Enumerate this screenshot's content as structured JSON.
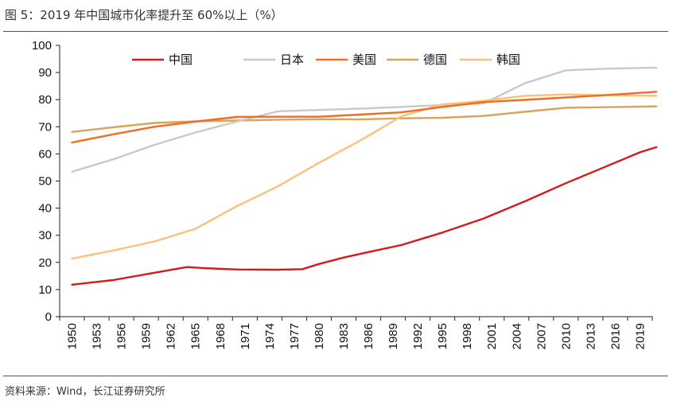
{
  "title": "图 5：2019 年中国城市化率提升至 60%以上（%）",
  "source": "资料来源：Wind，长江证券研究所",
  "chart_data": {
    "type": "line",
    "title": "2019 年中国城市化率提升至 60%以上（%）",
    "xlabel": "",
    "ylabel": "",
    "ylim": [
      0,
      100
    ],
    "yticks": [
      0,
      10,
      20,
      30,
      40,
      50,
      60,
      70,
      80,
      90,
      100
    ],
    "xlim": [
      1950,
      2022
    ],
    "xticks": [
      1950,
      1953,
      1956,
      1959,
      1962,
      1965,
      1968,
      1971,
      1974,
      1977,
      1980,
      1983,
      1986,
      1989,
      1992,
      1995,
      1998,
      2001,
      2004,
      2007,
      2010,
      2013,
      2016,
      2019
    ],
    "legend_position": "top",
    "series": [
      {
        "name": "中国",
        "color": "#d7191c",
        "x": [
          1950,
          1955,
          1960,
          1964,
          1966,
          1970,
          1975,
          1978,
          1980,
          1983,
          1986,
          1990,
          1995,
          2000,
          2005,
          2010,
          2015,
          2019,
          2021
        ],
        "y": [
          11.8,
          13.5,
          16.2,
          18.3,
          17.9,
          17.4,
          17.3,
          17.5,
          19.4,
          21.8,
          23.8,
          26.4,
          31.0,
          36.2,
          42.5,
          49.2,
          55.5,
          60.6,
          62.5
        ]
      },
      {
        "name": "日本",
        "color": "#c9c9c9",
        "x": [
          1950,
          1955,
          1960,
          1965,
          1970,
          1975,
          1980,
          1985,
          1990,
          1995,
          2000,
          2005,
          2010,
          2015,
          2021
        ],
        "y": [
          53.4,
          58.0,
          63.3,
          67.9,
          71.9,
          75.7,
          76.2,
          76.7,
          77.3,
          78.0,
          78.6,
          86.0,
          90.8,
          91.4,
          91.8
        ]
      },
      {
        "name": "美国",
        "color": "#f26d21",
        "x": [
          1950,
          1955,
          1960,
          1965,
          1970,
          1975,
          1980,
          1985,
          1990,
          1995,
          2000,
          2005,
          2010,
          2015,
          2021
        ],
        "y": [
          64.2,
          67.2,
          70.0,
          71.9,
          73.6,
          73.7,
          73.7,
          74.5,
          75.3,
          77.3,
          79.1,
          79.9,
          80.8,
          81.7,
          82.9
        ]
      },
      {
        "name": "德国",
        "color": "#d6a45a",
        "x": [
          1950,
          1955,
          1960,
          1965,
          1970,
          1975,
          1980,
          1985,
          1990,
          1995,
          2000,
          2005,
          2010,
          2015,
          2021
        ],
        "y": [
          68.1,
          69.8,
          71.4,
          72.0,
          72.3,
          72.6,
          72.8,
          72.7,
          73.1,
          73.3,
          74.0,
          75.5,
          77.0,
          77.2,
          77.5
        ]
      },
      {
        "name": "韩国",
        "color": "#f9c07e",
        "x": [
          1950,
          1955,
          1960,
          1965,
          1970,
          1975,
          1980,
          1985,
          1990,
          1995,
          2000,
          2005,
          2010,
          2015,
          2021
        ],
        "y": [
          21.4,
          24.4,
          27.7,
          32.4,
          40.7,
          48.0,
          56.7,
          64.9,
          73.8,
          78.2,
          79.6,
          81.4,
          81.9,
          81.6,
          81.4
        ]
      }
    ]
  }
}
